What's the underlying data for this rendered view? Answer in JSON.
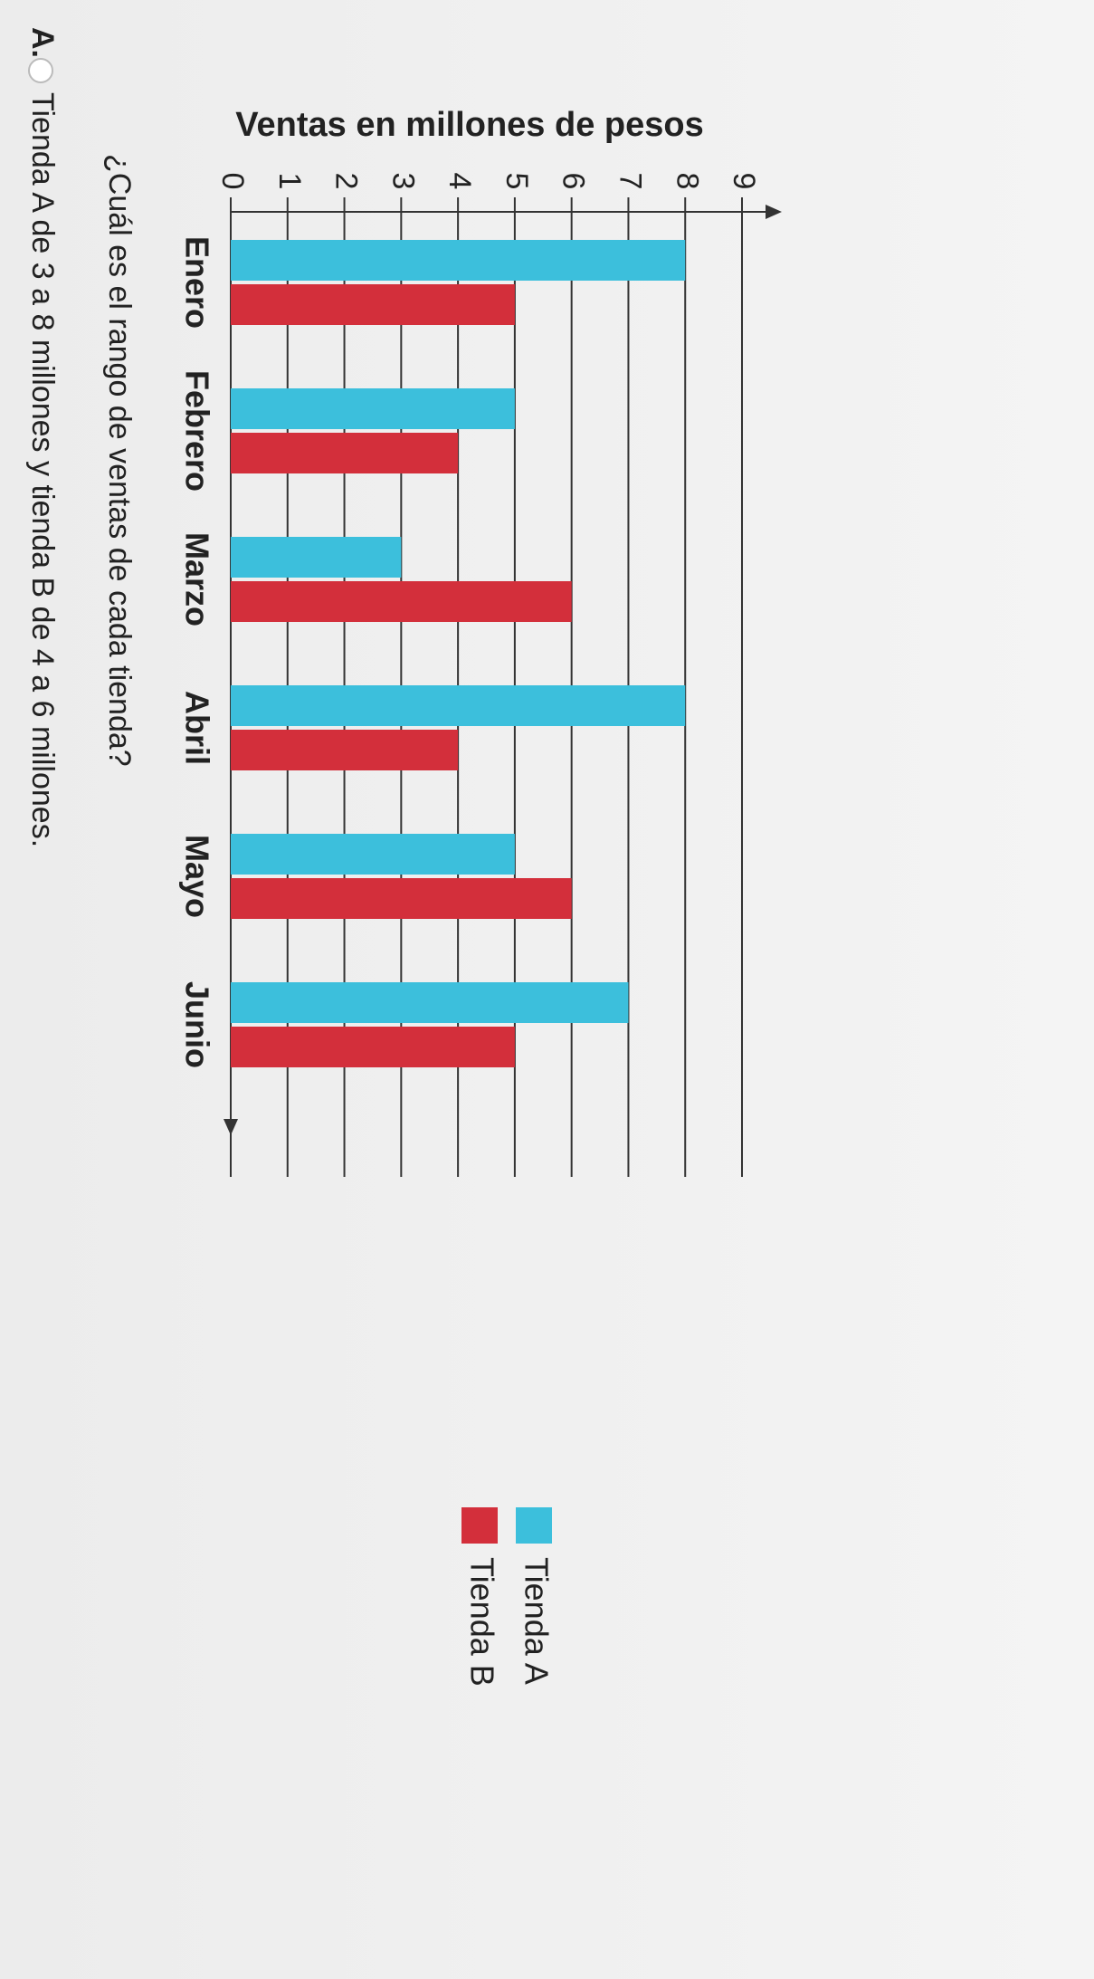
{
  "chart_data": {
    "type": "bar",
    "y_label": "Ventas en millones de pesos",
    "categories": [
      "Enero",
      "Febrero",
      "Marzo",
      "Abril",
      "Mayo",
      "Junio"
    ],
    "series": [
      {
        "name": "Tienda A",
        "color": "#3cbfdc",
        "values": [
          8,
          5,
          3,
          8,
          5,
          7
        ]
      },
      {
        "name": "Tienda B",
        "color": "#d32f3b",
        "values": [
          5,
          4,
          6,
          4,
          6,
          5
        ]
      }
    ],
    "ylim": [
      0,
      9
    ],
    "yticks": [
      0,
      1,
      2,
      3,
      4,
      5,
      6,
      7,
      8,
      9
    ],
    "grid": true
  },
  "question": "¿Cuál es el rango de ventas de cada tienda?",
  "options": [
    {
      "label": "A.",
      "text": "Tienda A de 3 a 8 millones y tienda B de 4 a 6 millones."
    }
  ]
}
